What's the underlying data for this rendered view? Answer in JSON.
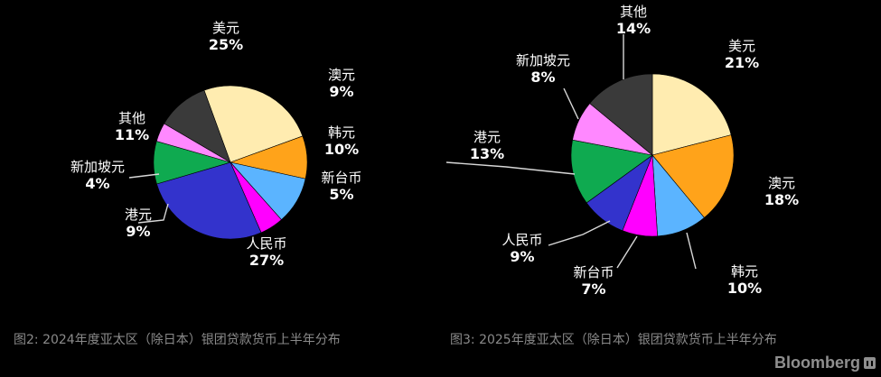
{
  "chart_data": [
    {
      "type": "pie",
      "title": "图2: 2024年度亚太区（除日本）银团贷款货币上半年分布",
      "slices": [
        {
          "label": "美元",
          "value": 25,
          "pct_label": "25%",
          "color": "#FFECB0"
        },
        {
          "label": "澳元",
          "value": 9,
          "pct_label": "9%",
          "color": "#FFA31A"
        },
        {
          "label": "韩元",
          "value": 10,
          "pct_label": "10%",
          "color": "#5BB4FF"
        },
        {
          "label": "新台币",
          "value": 5,
          "pct_label": "5%",
          "color": "#FF00FF"
        },
        {
          "label": "人民币",
          "value": 27,
          "pct_label": "27%",
          "color": "#3333CC"
        },
        {
          "label": "港元",
          "value": 9,
          "pct_label": "9%",
          "color": "#0FAA50"
        },
        {
          "label": "新加坡元",
          "value": 4,
          "pct_label": "4%",
          "color": "#FF88FF"
        },
        {
          "label": "其他",
          "value": 11,
          "pct_label": "11%",
          "color": "#3A3A3A"
        }
      ]
    },
    {
      "type": "pie",
      "title": "图3: 2025年度亚太区（除日本）银团贷款货币上半年分布",
      "slices": [
        {
          "label": "美元",
          "value": 21,
          "pct_label": "21%",
          "color": "#FFECB0"
        },
        {
          "label": "澳元",
          "value": 18,
          "pct_label": "18%",
          "color": "#FFA31A"
        },
        {
          "label": "韩元",
          "value": 10,
          "pct_label": "10%",
          "color": "#5BB4FF"
        },
        {
          "label": "新台币",
          "value": 7,
          "pct_label": "7%",
          "color": "#FF00FF"
        },
        {
          "label": "人民币",
          "value": 9,
          "pct_label": "9%",
          "color": "#3333CC"
        },
        {
          "label": "港元",
          "value": 13,
          "pct_label": "13%",
          "color": "#0FAA50"
        },
        {
          "label": "新加坡元",
          "value": 8,
          "pct_label": "8%",
          "color": "#FF88FF"
        },
        {
          "label": "其他",
          "value": 14,
          "pct_label": "14%",
          "color": "#3A3A3A"
        }
      ]
    }
  ],
  "brand": "Bloomberg"
}
